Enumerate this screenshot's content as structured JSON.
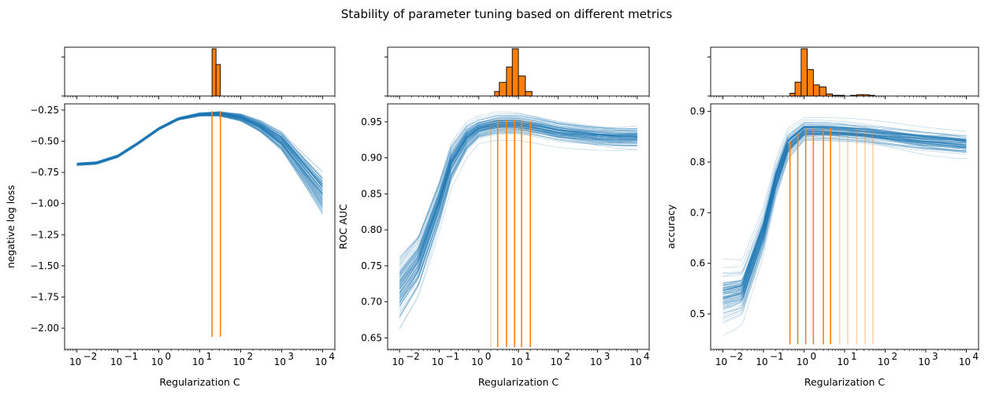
{
  "figure": {
    "title": "Stability of parameter tuning based on different metrics",
    "colors": {
      "curves": "#1f77b4",
      "highlight": "#ff7f0e",
      "hist_edge": "#000000"
    }
  },
  "chart_data": [
    {
      "type": "line",
      "name": "negative-log-loss",
      "xlabel": "Regularization C",
      "ylabel": "negative log loss",
      "xscale": "log",
      "xlim": [
        0.005,
        20000
      ],
      "ylim": [
        -2.17,
        -0.2
      ],
      "xticks": [
        0.01,
        0.1,
        1,
        10,
        100,
        1000,
        10000
      ],
      "xticklabels": [
        "10^-2",
        "10^-1",
        "10^0",
        "10^1",
        "10^2",
        "10^3",
        "10^4"
      ],
      "yticks": [
        -0.25,
        -0.5,
        -0.75,
        -1.0,
        -1.25,
        -1.5,
        -1.75,
        -2.0
      ],
      "yticklabels": [
        "−0.25",
        "−0.50",
        "−0.75",
        "−1.00",
        "−1.25",
        "−1.50",
        "−1.75",
        "−2.00"
      ],
      "curve_count": 100,
      "mean_curve": [
        [
          0.01,
          -0.685
        ],
        [
          0.03,
          -0.675
        ],
        [
          0.1,
          -0.62
        ],
        [
          0.3,
          -0.52
        ],
        [
          1,
          -0.4
        ],
        [
          3,
          -0.32
        ],
        [
          10,
          -0.285
        ],
        [
          30,
          -0.28
        ],
        [
          100,
          -0.31
        ],
        [
          300,
          -0.38
        ],
        [
          1000,
          -0.5
        ],
        [
          3000,
          -0.7
        ],
        [
          10000,
          -0.92
        ]
      ],
      "optimal_C": [
        {
          "x": 20,
          "alpha": 1.0
        },
        {
          "x": 32,
          "alpha": 1.0
        }
      ],
      "vline_ymin": -2.07,
      "hist": {
        "bins": [
          {
            "x0": 20,
            "x1": 25,
            "count": 60
          },
          {
            "x0": 25,
            "x1": 32,
            "count": 40
          }
        ],
        "count_max": 60
      }
    },
    {
      "type": "line",
      "name": "roc-auc",
      "xlabel": "Regularization C",
      "ylabel": "ROC AUC",
      "xscale": "log",
      "xlim": [
        0.005,
        20000
      ],
      "ylim": [
        0.634,
        0.975
      ],
      "xticks": [
        0.01,
        0.1,
        1,
        10,
        100,
        1000,
        10000
      ],
      "xticklabels": [
        "10^-2",
        "10^-1",
        "10^0",
        "10^1",
        "10^2",
        "10^3",
        "10^4"
      ],
      "yticks": [
        0.65,
        0.7,
        0.75,
        0.8,
        0.85,
        0.9,
        0.95
      ],
      "yticklabels": [
        "0.65",
        "0.70",
        "0.75",
        "0.80",
        "0.85",
        "0.90",
        "0.95"
      ],
      "curve_count": 100,
      "mean_curve": [
        [
          0.01,
          0.725
        ],
        [
          0.03,
          0.76
        ],
        [
          0.1,
          0.84
        ],
        [
          0.2,
          0.895
        ],
        [
          0.5,
          0.93
        ],
        [
          1,
          0.942
        ],
        [
          3,
          0.948
        ],
        [
          10,
          0.948
        ],
        [
          30,
          0.944
        ],
        [
          100,
          0.938
        ],
        [
          300,
          0.935
        ],
        [
          1000,
          0.932
        ],
        [
          3000,
          0.93
        ],
        [
          10000,
          0.93
        ]
      ],
      "optimal_C": [
        {
          "x": 2,
          "alpha": 0.3
        },
        {
          "x": 3,
          "alpha": 1.0
        },
        {
          "x": 5,
          "alpha": 1.0
        },
        {
          "x": 8,
          "alpha": 1.0
        },
        {
          "x": 12,
          "alpha": 1.0
        },
        {
          "x": 20,
          "alpha": 1.0
        }
      ],
      "vline_ymin": 0.637,
      "hist": {
        "bins": [
          {
            "x0": 2.5,
            "x1": 3.3,
            "count": 5
          },
          {
            "x0": 3.3,
            "x1": 5,
            "count": 15
          },
          {
            "x0": 5,
            "x1": 7,
            "count": 32
          },
          {
            "x0": 7,
            "x1": 10,
            "count": 52
          },
          {
            "x0": 10,
            "x1": 15,
            "count": 22
          },
          {
            "x0": 15,
            "x1": 22,
            "count": 5
          }
        ],
        "count_max": 52
      }
    },
    {
      "type": "line",
      "name": "accuracy",
      "xlabel": "Regularization C",
      "ylabel": "accuracy",
      "xscale": "log",
      "xlim": [
        0.005,
        20000
      ],
      "ylim": [
        0.43,
        0.915
      ],
      "xticks": [
        0.01,
        0.1,
        1,
        10,
        100,
        1000,
        10000
      ],
      "xticklabels": [
        "10^-2",
        "10^-1",
        "10^0",
        "10^1",
        "10^2",
        "10^3",
        "10^4"
      ],
      "yticks": [
        0.5,
        0.6,
        0.7,
        0.8,
        0.9
      ],
      "yticklabels": [
        "0.5",
        "0.6",
        "0.7",
        "0.8",
        "0.9"
      ],
      "curve_count": 100,
      "mean_curve": [
        [
          0.01,
          0.53
        ],
        [
          0.03,
          0.54
        ],
        [
          0.1,
          0.66
        ],
        [
          0.2,
          0.76
        ],
        [
          0.4,
          0.83
        ],
        [
          1,
          0.86
        ],
        [
          3,
          0.86
        ],
        [
          10,
          0.858
        ],
        [
          30,
          0.855
        ],
        [
          100,
          0.85
        ],
        [
          300,
          0.845
        ],
        [
          1000,
          0.84
        ],
        [
          3000,
          0.837
        ],
        [
          10000,
          0.833
        ]
      ],
      "optimal_C": [
        {
          "x": 0.45,
          "alpha": 1.0
        },
        {
          "x": 0.7,
          "alpha": 1.0
        },
        {
          "x": 1.1,
          "alpha": 1.0
        },
        {
          "x": 1.7,
          "alpha": 1.0
        },
        {
          "x": 3,
          "alpha": 1.0
        },
        {
          "x": 4.5,
          "alpha": 1.0
        },
        {
          "x": 7.5,
          "alpha": 0.35
        },
        {
          "x": 12,
          "alpha": 0.35
        },
        {
          "x": 20,
          "alpha": 0.35
        },
        {
          "x": 32,
          "alpha": 0.35
        },
        {
          "x": 50,
          "alpha": 0.35
        }
      ],
      "vline_ymin": 0.44,
      "hist": {
        "bins": [
          {
            "x0": 0.45,
            "x1": 0.6,
            "count": 4
          },
          {
            "x0": 0.6,
            "x1": 0.85,
            "count": 20
          },
          {
            "x0": 0.85,
            "x1": 1.2,
            "count": 68
          },
          {
            "x0": 1.2,
            "x1": 1.7,
            "count": 38
          },
          {
            "x0": 1.7,
            "x1": 2.4,
            "count": 16
          },
          {
            "x0": 2.4,
            "x1": 3.5,
            "count": 13
          },
          {
            "x0": 3.5,
            "x1": 5,
            "count": 3
          },
          {
            "x0": 5,
            "x1": 7,
            "count": 1
          },
          {
            "x0": 7,
            "x1": 10,
            "count": 1
          },
          {
            "x0": 14,
            "x1": 20,
            "count": 1
          },
          {
            "x0": 20,
            "x1": 28,
            "count": 2
          },
          {
            "x0": 28,
            "x1": 40,
            "count": 2
          },
          {
            "x0": 40,
            "x1": 55,
            "count": 1
          }
        ],
        "count_max": 68
      }
    }
  ]
}
